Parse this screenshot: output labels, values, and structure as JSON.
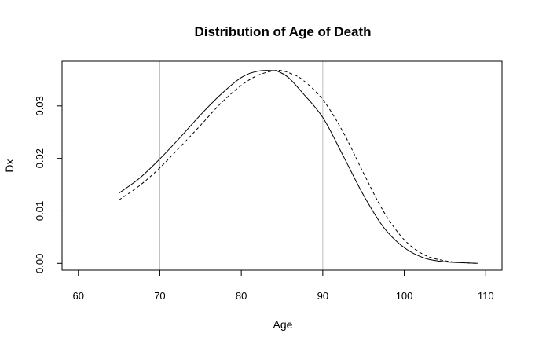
{
  "chart_data": {
    "type": "line",
    "title": "Distribution of Age of Death",
    "xlabel": "Age",
    "ylabel": "Dx",
    "xlim": [
      58,
      112
    ],
    "ylim": [
      -0.0013,
      0.0385
    ],
    "xticks": [
      60,
      70,
      80,
      90,
      100,
      110
    ],
    "xtick_labels": [
      "60",
      "70",
      "80",
      "90",
      "100",
      "110"
    ],
    "yticks": [
      0.0,
      0.01,
      0.02,
      0.03
    ],
    "ytick_labels": [
      "0.00",
      "0.01",
      "0.02",
      "0.03"
    ],
    "vertical_reference_lines": [
      70,
      90
    ],
    "legend": "none",
    "series": [
      {
        "style": "solid",
        "color": "#000000",
        "x": [
          65,
          67.5,
          70,
          72.5,
          75,
          77.5,
          80,
          82,
          84,
          85,
          86,
          87.5,
          90,
          92.5,
          95,
          97.5,
          100,
          102.5,
          105,
          107.5,
          109
        ],
        "y": [
          0.0134,
          0.0162,
          0.0199,
          0.024,
          0.0283,
          0.0322,
          0.0354,
          0.0366,
          0.0367,
          0.0362,
          0.0351,
          0.0325,
          0.0278,
          0.0205,
          0.013,
          0.0068,
          0.003,
          0.001,
          0.0003,
          0.0001,
          0.0
        ]
      },
      {
        "style": "dashed",
        "color": "#000000",
        "x": [
          65,
          67.5,
          70,
          72.5,
          75,
          77.5,
          80,
          82,
          84,
          85,
          86,
          87.5,
          90,
          92.5,
          95,
          97.5,
          100,
          102.5,
          105,
          107.5,
          109
        ],
        "y": [
          0.0121,
          0.0148,
          0.0182,
          0.0222,
          0.0263,
          0.0305,
          0.0339,
          0.0358,
          0.0367,
          0.0367,
          0.0362,
          0.035,
          0.0312,
          0.025,
          0.0172,
          0.0098,
          0.0045,
          0.0016,
          0.0005,
          0.0001,
          0.0
        ]
      }
    ]
  }
}
